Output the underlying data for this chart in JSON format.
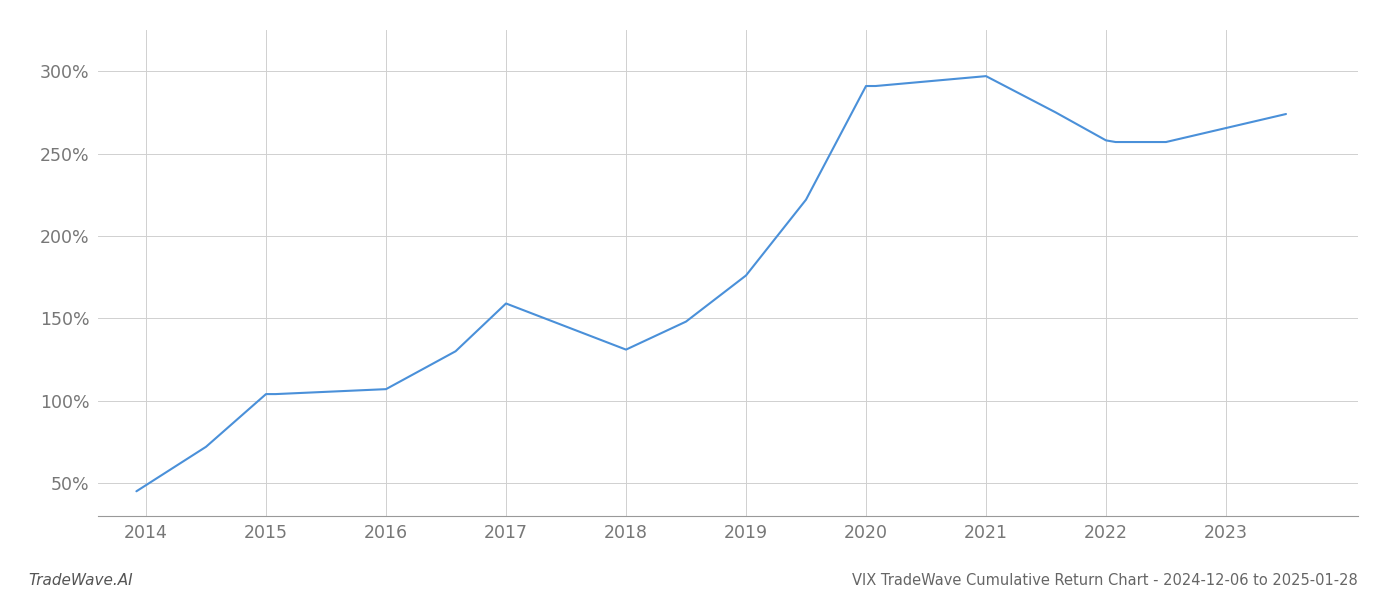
{
  "x_years": [
    2013.92,
    2014.5,
    2015.0,
    2015.08,
    2016.0,
    2016.58,
    2017.0,
    2017.5,
    2018.0,
    2018.5,
    2019.0,
    2019.5,
    2020.0,
    2020.08,
    2021.0,
    2021.58,
    2022.0,
    2022.08,
    2022.5,
    2023.5
  ],
  "y_values": [
    45,
    72,
    104,
    104,
    107,
    130,
    159,
    145,
    131,
    148,
    176,
    222,
    291,
    291,
    297,
    275,
    258,
    257,
    257,
    274
  ],
  "line_color": "#4a90d9",
  "line_width": 1.5,
  "background_color": "#ffffff",
  "grid_color": "#d0d0d0",
  "title": "VIX TradeWave Cumulative Return Chart - 2024-12-06 to 2025-01-28",
  "title_fontsize": 10.5,
  "title_color": "#666666",
  "watermark": "TradeWave.AI",
  "watermark_color": "#555555",
  "watermark_fontsize": 11,
  "x_tick_labels": [
    "2014",
    "2015",
    "2016",
    "2017",
    "2018",
    "2019",
    "2020",
    "2021",
    "2022",
    "2023"
  ],
  "x_tick_positions": [
    2014,
    2015,
    2016,
    2017,
    2018,
    2019,
    2020,
    2021,
    2022,
    2023
  ],
  "y_tick_labels": [
    "50%",
    "100%",
    "150%",
    "200%",
    "250%",
    "300%"
  ],
  "y_tick_positions": [
    50,
    100,
    150,
    200,
    250,
    300
  ],
  "xlim": [
    2013.6,
    2024.1
  ],
  "ylim": [
    30,
    325
  ],
  "tick_color": "#777777",
  "tick_fontsize": 12.5,
  "spine_color": "#999999"
}
